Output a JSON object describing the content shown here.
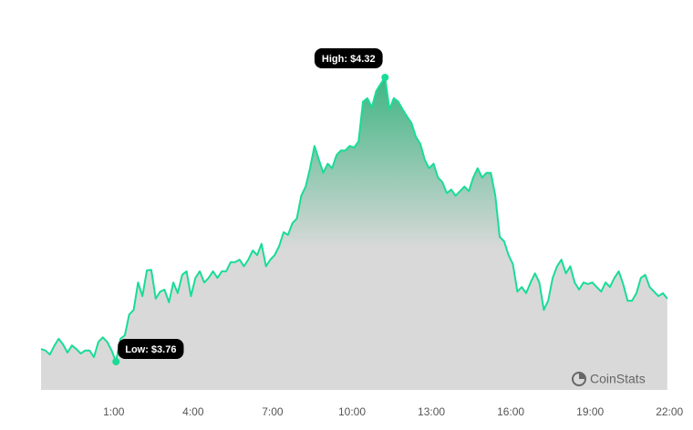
{
  "chart_data": {
    "type": "area",
    "x": [
      -105,
      -95,
      -85,
      -75,
      -65,
      -55,
      -45,
      -35,
      -25,
      -15,
      -5,
      5,
      15,
      25,
      35,
      45,
      55,
      65,
      75,
      85,
      95,
      105,
      115,
      125,
      135,
      145,
      155,
      165,
      175,
      185,
      195,
      205,
      215,
      225,
      235,
      245,
      255,
      265,
      275,
      285,
      295,
      305,
      315,
      325,
      335,
      345,
      355,
      365,
      375,
      385,
      395,
      405,
      415,
      425,
      435,
      445,
      455,
      465,
      475,
      485,
      495,
      505,
      515,
      525,
      535,
      545,
      555,
      565,
      575,
      585,
      595,
      605,
      615,
      625,
      635,
      645,
      655,
      665,
      675,
      685,
      695,
      705,
      715,
      725,
      735,
      745,
      755,
      765,
      775,
      785,
      795,
      805,
      815,
      825,
      835,
      845,
      855,
      865,
      875,
      885,
      895,
      905,
      915,
      925,
      935,
      945,
      955,
      965,
      975,
      985,
      995,
      1005,
      1015,
      1025,
      1035,
      1045,
      1055,
      1065,
      1075,
      1085,
      1095,
      1105,
      1115,
      1125,
      1135,
      1145,
      1155,
      1165,
      1175,
      1185,
      1195,
      1205,
      1215,
      1225,
      1235,
      1245,
      1255,
      1265,
      1275,
      1285,
      1295,
      1305,
      1315
    ],
    "values": [
      3.785,
      3.782,
      3.774,
      3.791,
      3.805,
      3.794,
      3.778,
      3.792,
      3.785,
      3.776,
      3.782,
      3.782,
      3.769,
      3.799,
      3.808,
      3.799,
      3.782,
      3.76,
      3.805,
      3.812,
      3.853,
      3.862,
      3.916,
      3.889,
      3.94,
      3.941,
      3.884,
      3.898,
      3.902,
      3.877,
      3.916,
      3.895,
      3.931,
      3.938,
      3.889,
      3.925,
      3.938,
      3.916,
      3.925,
      3.938,
      3.925,
      3.938,
      3.938,
      3.956,
      3.956,
      3.961,
      3.948,
      3.961,
      3.979,
      3.97,
      3.992,
      3.948,
      3.961,
      3.97,
      3.988,
      4.015,
      4.01,
      4.033,
      4.042,
      4.087,
      4.105,
      4.141,
      4.185,
      4.158,
      4.132,
      4.15,
      4.141,
      4.167,
      4.176,
      4.176,
      4.185,
      4.182,
      4.194,
      4.272,
      4.279,
      4.261,
      4.293,
      4.307,
      4.32,
      4.257,
      4.279,
      4.272,
      4.257,
      4.243,
      4.23,
      4.203,
      4.189,
      4.158,
      4.141,
      4.15,
      4.123,
      4.114,
      4.092,
      4.099,
      4.087,
      4.096,
      4.105,
      4.096,
      4.123,
      4.141,
      4.123,
      4.132,
      4.132,
      4.087,
      4.006,
      3.997,
      3.97,
      3.952,
      3.898,
      3.907,
      3.895,
      3.916,
      3.934,
      3.916,
      3.862,
      3.88,
      3.925,
      3.948,
      3.961,
      3.934,
      3.948,
      3.916,
      3.902,
      3.916,
      3.913,
      3.916,
      3.907,
      3.898,
      3.916,
      3.907,
      3.925,
      3.938,
      3.913,
      3.88,
      3.88,
      3.895,
      3.925,
      3.931,
      3.907,
      3.898,
      3.889,
      3.895,
      3.884
    ],
    "color": "#19dc96",
    "xlim": [
      -105,
      1334
    ],
    "xticks": [
      {
        "value": 60,
        "label": "1:00"
      },
      {
        "value": 240,
        "label": "4:00"
      },
      {
        "value": 420,
        "label": "7:00"
      },
      {
        "value": 600,
        "label": "10:00"
      },
      {
        "value": 780,
        "label": "13:00"
      },
      {
        "value": 960,
        "label": "16:00"
      },
      {
        "value": 1140,
        "label": "19:00"
      },
      {
        "value": 1320,
        "label": "22:00"
      }
    ],
    "high_label": "High: $4.32",
    "low_label": "Low: $3.76",
    "watermark": "CoinStats"
  }
}
